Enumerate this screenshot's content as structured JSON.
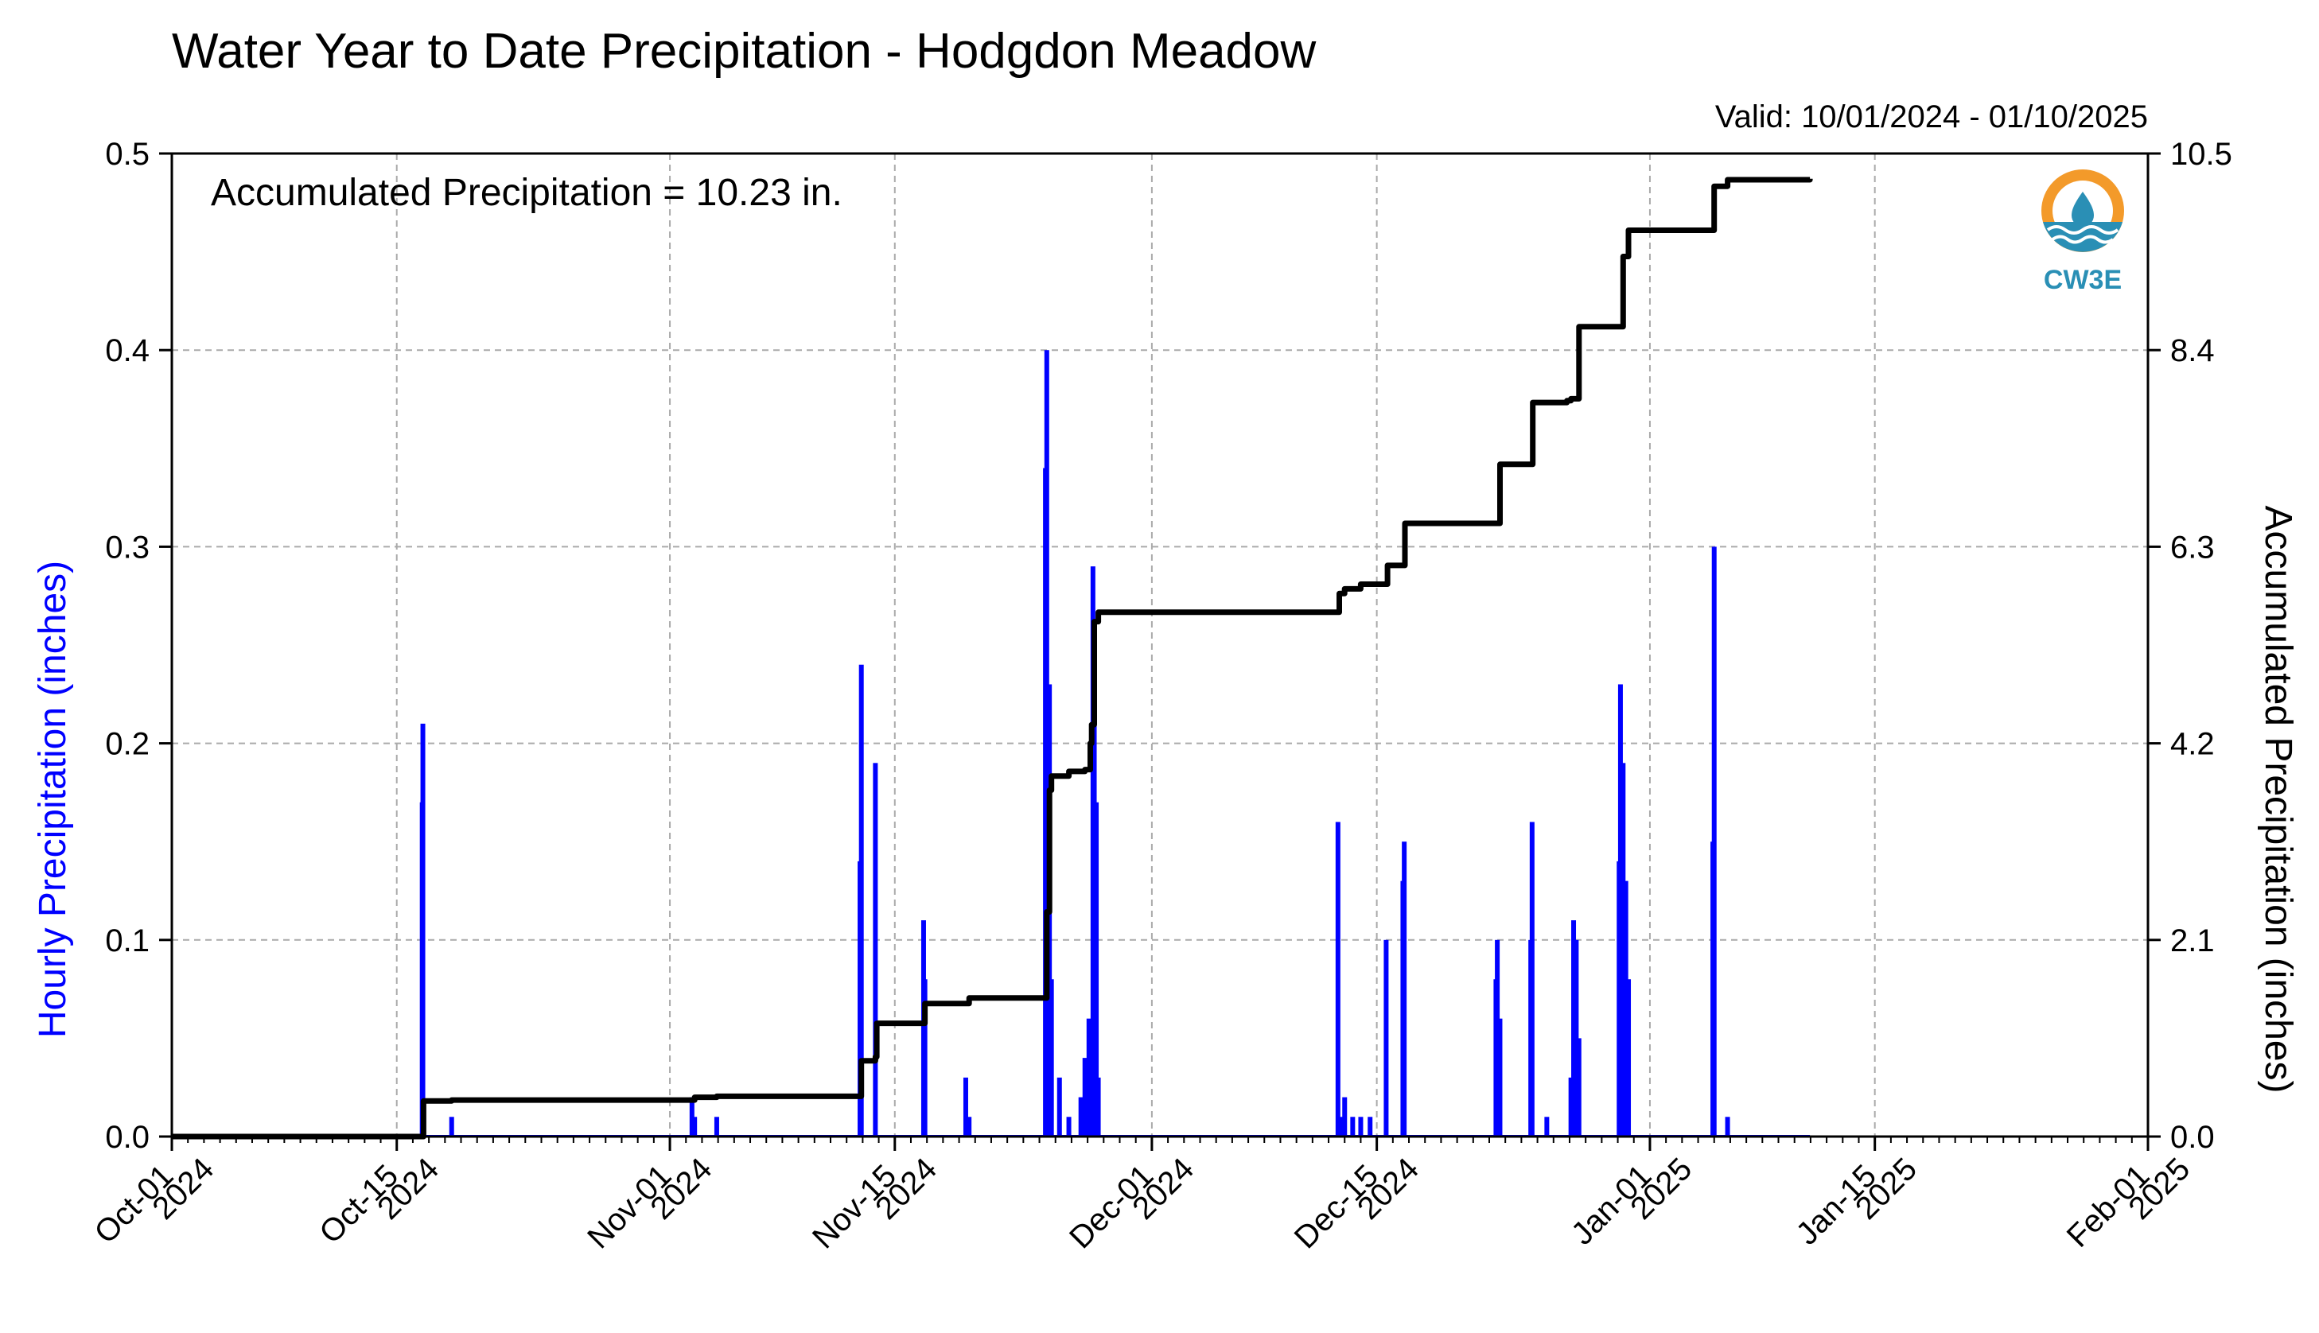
{
  "chart_data": {
    "type": "bar",
    "title": "Water Year to Date Precipitation - Hodgdon Meadow",
    "valid_text": "Valid: 10/01/2024 - 01/10/2025",
    "annotation": "Accumulated Precipitation = 10.23 in.",
    "ylabel_left": "Hourly Precipitation (inches)",
    "ylabel_right": "Accumulated Precipitation (inches)",
    "left_color": "#0000ff",
    "right_color": "#000000",
    "xlim": [
      "2024-10-01",
      "2025-02-01"
    ],
    "ylim_left": [
      0,
      0.5
    ],
    "ylim_right": [
      0,
      10.5
    ],
    "grid": true,
    "x_ticks": [
      {
        "date": "2024-10-01",
        "line1": "Oct-01",
        "line2": "2024"
      },
      {
        "date": "2024-10-15",
        "line1": "Oct-15",
        "line2": "2024"
      },
      {
        "date": "2024-11-01",
        "line1": "Nov-01",
        "line2": "2024"
      },
      {
        "date": "2024-11-15",
        "line1": "Nov-15",
        "line2": "2024"
      },
      {
        "date": "2024-12-01",
        "line1": "Dec-01",
        "line2": "2024"
      },
      {
        "date": "2024-12-15",
        "line1": "Dec-15",
        "line2": "2024"
      },
      {
        "date": "2025-01-01",
        "line1": "Jan-01",
        "line2": "2025"
      },
      {
        "date": "2025-01-15",
        "line1": "Jan-15",
        "line2": "2025"
      },
      {
        "date": "2025-02-01",
        "line1": "Feb-01",
        "line2": "2025"
      }
    ],
    "y_ticks_left": [
      "0.0",
      "0.1",
      "0.2",
      "0.3",
      "0.4",
      "0.5"
    ],
    "y_ticks_right": [
      "0.0",
      "2.1",
      "4.2",
      "6.3",
      "8.4",
      "10.5"
    ],
    "series": [
      {
        "name": "Hourly Precipitation (inches)",
        "type": "bar",
        "points": [
          [
            "2024-10-16T14:00",
            0.17
          ],
          [
            "2024-10-16T15:00",
            0.21
          ],
          [
            "2024-10-18T10:00",
            0.01
          ],
          [
            "2024-11-02T09:00",
            0.02
          ],
          [
            "2024-11-02T13:00",
            0.01
          ],
          [
            "2024-11-03T22:00",
            0.01
          ],
          [
            "2024-11-12T20:00",
            0.14
          ],
          [
            "2024-11-12T22:00",
            0.24
          ],
          [
            "2024-11-13T19:00",
            0.19
          ],
          [
            "2024-11-16T19:00",
            0.11
          ],
          [
            "2024-11-16T21:00",
            0.08
          ],
          [
            "2024-11-19T10:00",
            0.03
          ],
          [
            "2024-11-19T15:00",
            0.01
          ],
          [
            "2024-11-24T09:00",
            0.34
          ],
          [
            "2024-11-24T11:00",
            0.4
          ],
          [
            "2024-11-24T15:00",
            0.23
          ],
          [
            "2024-11-24T18:00",
            0.08
          ],
          [
            "2024-11-25T06:00",
            0.03
          ],
          [
            "2024-11-25T20:00",
            0.01
          ],
          [
            "2024-11-26T14:00",
            0.02
          ],
          [
            "2024-11-26T20:00",
            0.04
          ],
          [
            "2024-11-27T02:00",
            0.06
          ],
          [
            "2024-11-27T08:00",
            0.29
          ],
          [
            "2024-11-27T10:00",
            0.23
          ],
          [
            "2024-11-27T13:00",
            0.17
          ],
          [
            "2024-11-27T16:00",
            0.03
          ],
          [
            "2024-12-12T14:00",
            0.16
          ],
          [
            "2024-12-12T20:00",
            0.01
          ],
          [
            "2024-12-13T00:00",
            0.02
          ],
          [
            "2024-12-13T12:00",
            0.01
          ],
          [
            "2024-12-14T00:00",
            0.01
          ],
          [
            "2024-12-14T14:00",
            0.01
          ],
          [
            "2024-12-15T14:00",
            0.1
          ],
          [
            "2024-12-16T15:00",
            0.13
          ],
          [
            "2024-12-16T17:00",
            0.15
          ],
          [
            "2024-12-22T10:00",
            0.08
          ],
          [
            "2024-12-22T12:00",
            0.1
          ],
          [
            "2024-12-22T16:00",
            0.06
          ],
          [
            "2024-12-24T14:00",
            0.1
          ],
          [
            "2024-12-24T16:00",
            0.16
          ],
          [
            "2024-12-25T14:00",
            0.01
          ],
          [
            "2024-12-27T02:00",
            0.03
          ],
          [
            "2024-12-27T06:00",
            0.11
          ],
          [
            "2024-12-27T10:00",
            0.1
          ],
          [
            "2024-12-27T14:00",
            0.05
          ],
          [
            "2024-12-30T02:00",
            0.14
          ],
          [
            "2024-12-30T04:00",
            0.23
          ],
          [
            "2024-12-30T08:00",
            0.19
          ],
          [
            "2024-12-30T12:00",
            0.13
          ],
          [
            "2024-12-30T16:00",
            0.08
          ],
          [
            "2025-01-04T22:00",
            0.15
          ],
          [
            "2025-01-05T00:00",
            0.3
          ],
          [
            "2025-01-05T20:00",
            0.01
          ]
        ]
      },
      {
        "name": "Accumulated Precipitation (inches)",
        "type": "step",
        "points": [
          [
            "2024-10-01T00:00",
            0.0
          ],
          [
            "2024-10-16T14:00",
            0.0
          ],
          [
            "2024-10-16T16:00",
            0.38
          ],
          [
            "2024-10-18T10:00",
            0.39
          ],
          [
            "2024-11-02T09:00",
            0.39
          ],
          [
            "2024-11-02T13:00",
            0.42
          ],
          [
            "2024-11-03T22:00",
            0.43
          ],
          [
            "2024-11-12T20:00",
            0.43
          ],
          [
            "2024-11-12T22:00",
            0.81
          ],
          [
            "2024-11-13T19:00",
            0.85
          ],
          [
            "2024-11-13T21:00",
            1.21
          ],
          [
            "2024-11-16T19:00",
            1.21
          ],
          [
            "2024-11-16T21:00",
            1.42
          ],
          [
            "2024-11-19T10:00",
            1.42
          ],
          [
            "2024-11-19T15:00",
            1.48
          ],
          [
            "2024-11-24T08:00",
            1.48
          ],
          [
            "2024-11-24T11:00",
            2.4
          ],
          [
            "2024-11-24T15:00",
            3.7
          ],
          [
            "2024-11-24T18:00",
            3.85
          ],
          [
            "2024-11-25T20:00",
            3.9
          ],
          [
            "2024-11-26T20:00",
            3.92
          ],
          [
            "2024-11-27T04:00",
            4.2
          ],
          [
            "2024-11-27T06:00",
            4.4
          ],
          [
            "2024-11-27T10:00",
            5.5
          ],
          [
            "2024-11-27T16:00",
            5.6
          ],
          [
            "2024-12-12T14:00",
            5.6
          ],
          [
            "2024-12-12T16:00",
            5.8
          ],
          [
            "2024-12-13T00:00",
            5.85
          ],
          [
            "2024-12-14T00:00",
            5.9
          ],
          [
            "2024-12-15T14:00",
            5.9
          ],
          [
            "2024-12-15T16:00",
            6.1
          ],
          [
            "2024-12-16T15:00",
            6.1
          ],
          [
            "2024-12-16T18:00",
            6.55
          ],
          [
            "2024-12-22T10:00",
            6.55
          ],
          [
            "2024-12-22T16:00",
            7.18
          ],
          [
            "2024-12-24T14:00",
            7.18
          ],
          [
            "2024-12-24T17:00",
            7.84
          ],
          [
            "2024-12-26T20:00",
            7.86
          ],
          [
            "2024-12-27T02:00",
            7.88
          ],
          [
            "2024-12-27T14:00",
            8.65
          ],
          [
            "2024-12-30T02:00",
            8.65
          ],
          [
            "2024-12-30T08:00",
            9.4
          ],
          [
            "2024-12-30T16:00",
            9.68
          ],
          [
            "2025-01-04T22:00",
            9.68
          ],
          [
            "2025-01-05T00:00",
            10.15
          ],
          [
            "2025-01-05T20:00",
            10.22
          ],
          [
            "2025-01-10T23:00",
            10.23
          ]
        ]
      }
    ]
  }
}
